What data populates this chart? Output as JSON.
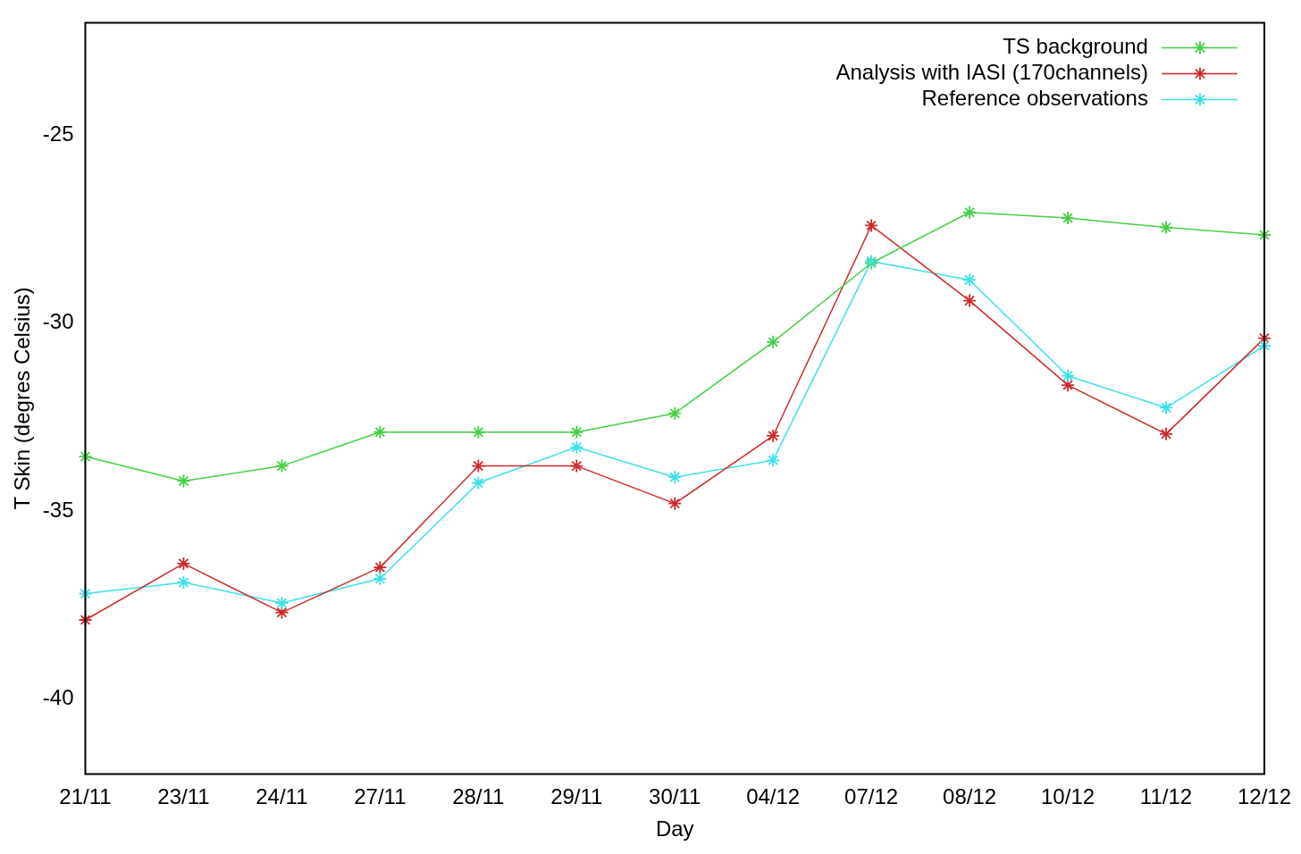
{
  "chart_data": {
    "type": "line",
    "xlabel": "Day",
    "ylabel": "T Skin (degres Celsius)",
    "categories": [
      "21/11",
      "23/11",
      "24/11",
      "27/11",
      "28/11",
      "29/11",
      "30/11",
      "04/12",
      "07/12",
      "08/12",
      "10/12",
      "11/12",
      "12/12"
    ],
    "series": [
      {
        "name": "TS background",
        "color": "#44d044",
        "values": [
          -33.55,
          -34.2,
          -33.8,
          -32.9,
          -32.9,
          -32.9,
          -32.4,
          -30.5,
          -28.4,
          -27.05,
          -27.2,
          -27.45,
          -27.65
        ]
      },
      {
        "name": "Analysis with IASI (170channels)",
        "color": "#cc2a2a",
        "values": [
          -37.9,
          -36.4,
          -37.7,
          -36.5,
          -33.8,
          -33.8,
          -34.8,
          -33.0,
          -27.4,
          -29.4,
          -31.65,
          -32.95,
          -30.4
        ]
      },
      {
        "name": "Reference observations",
        "color": "#3ce0e8",
        "values": [
          -37.2,
          -36.9,
          -37.45,
          -36.8,
          -34.25,
          -33.3,
          -34.1,
          -33.65,
          -28.35,
          -28.85,
          -31.4,
          -32.25,
          -30.6
        ]
      }
    ],
    "ylim": [
      -42,
      -22
    ],
    "yticks": [
      -25,
      -30,
      -35,
      -40
    ],
    "grid": false,
    "legend": "top right",
    "marker": "star",
    "line_style": "solid"
  }
}
